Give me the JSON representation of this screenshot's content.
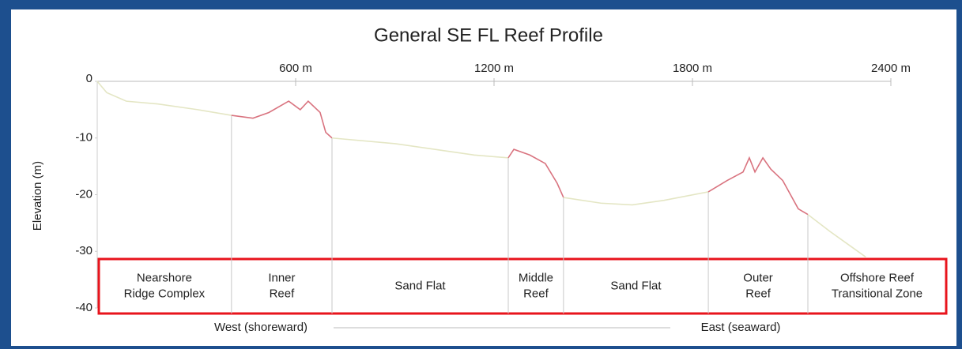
{
  "chart_data": {
    "type": "line",
    "title": "General SE FL Reef Profile",
    "ylabel": "Elevation (m)",
    "x": [
      0,
      29,
      88,
      184,
      304,
      406,
      471,
      519,
      579,
      614,
      638,
      674,
      691,
      710,
      901,
      1140,
      1243,
      1260,
      1308,
      1355,
      1391,
      1410,
      1523,
      1618,
      1714,
      1848,
      1905,
      1953,
      1972,
      1989,
      2013,
      2037,
      2073,
      2120,
      2149,
      2216,
      2276,
      2324
    ],
    "values": [
      0,
      -2,
      -3.5,
      -4,
      -5,
      -6,
      -6.5,
      -5.5,
      -3.5,
      -5,
      -3.5,
      -5.5,
      -9,
      -10,
      -11,
      -13,
      -13.5,
      -12,
      -13,
      -14.5,
      -18,
      -20.5,
      -21.5,
      -21.8,
      -21,
      -19.5,
      -17.5,
      -16,
      -13.5,
      -16,
      -13.5,
      -15.5,
      -17.5,
      -22.5,
      -23.5,
      -26.5,
      -29,
      -31
    ],
    "xlim": [
      0,
      2400
    ],
    "xticks": [
      {
        "value": 600,
        "label": "600 m"
      },
      {
        "value": 1200,
        "label": "1200 m"
      },
      {
        "value": 1800,
        "label": "1800 m"
      },
      {
        "value": 2400,
        "label": "2400 m"
      }
    ],
    "ylim": [
      -40,
      0
    ],
    "yticks": [
      0,
      -10,
      -20,
      -30,
      -40
    ],
    "boundaries": [
      406,
      710,
      1243,
      1410,
      1848,
      2149
    ],
    "zones": [
      [
        "Nearshore",
        "Ridge Complex"
      ],
      [
        "Inner",
        "Reef"
      ],
      [
        "Sand Flat"
      ],
      [
        "Middle",
        "Reef"
      ],
      [
        "Sand Flat"
      ],
      [
        "Outer",
        "Reef"
      ],
      [
        "Offshore Reef",
        "Transitional Zone"
      ]
    ],
    "zone_colors": [
      "#e4e6c4",
      "#d9737f",
      "#e4e6c4",
      "#d9737f",
      "#e4e6c4",
      "#d9737f",
      "#e4e6c4"
    ],
    "direction_left": "West (shoreward)",
    "direction_right": "East (seaward)"
  }
}
